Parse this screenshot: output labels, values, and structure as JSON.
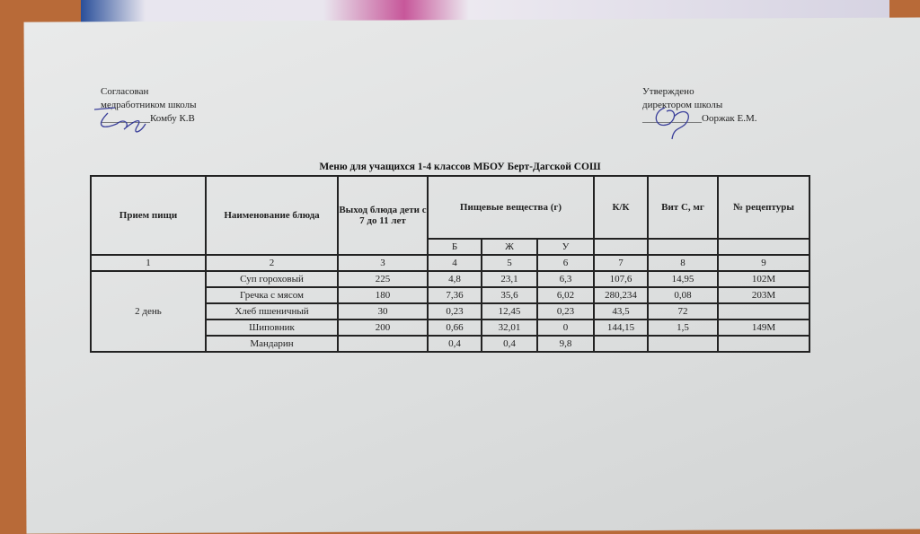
{
  "approved_left": {
    "line1": "Согласован",
    "line2": "медработником школы",
    "line3": "__________Комбу К.В"
  },
  "approved_right": {
    "line1": "Утверждено",
    "line2": "директором школы",
    "line3": "____________Ооржак Е.М."
  },
  "title": "Меню для учащихся  1-4 классов МБОУ Берт-Дагской СОШ",
  "headers": [
    "Прием пищи",
    "Наименование блюда",
    "Выход блюда дети с 7 до 11 лет",
    "Пищевые вещества (г)",
    "К/К",
    "Вит С, мг",
    "№ рецептуры"
  ],
  "subheaders": [
    "Б",
    "Ж",
    "У"
  ],
  "column_numbers": [
    "1",
    "2",
    "3",
    "4",
    "5",
    "6",
    "7",
    "8",
    "9"
  ],
  "meal": "2 день",
  "rows": [
    [
      "Суп гороховый",
      "225",
      "4,8",
      "23,1",
      "6,3",
      "107,6",
      "14,95",
      "102М"
    ],
    [
      "Гречка с мясом",
      "180",
      "7,36",
      "35,6",
      "6,02",
      "280,234",
      "0,08",
      "203М"
    ],
    [
      "Хлеб пшеничный",
      "30",
      "0,23",
      "12,45",
      "0,23",
      "43,5",
      "72",
      ""
    ],
    [
      "Шиповник",
      "200",
      "0,66",
      "32,01",
      "0",
      "144,15",
      "1,5",
      "149М"
    ],
    [
      "Мандарин",
      "",
      "0,4",
      "0,4",
      "9,8",
      "",
      "",
      ""
    ]
  ]
}
